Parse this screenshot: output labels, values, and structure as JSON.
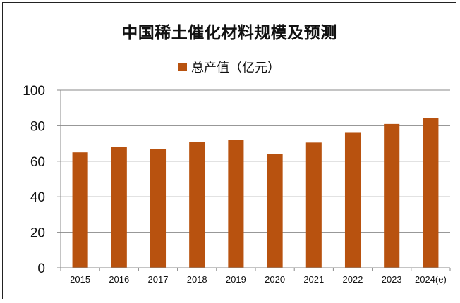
{
  "chart_data": {
    "type": "bar",
    "title": "中国稀土催化材料规模及预测",
    "categories": [
      "2015",
      "2016",
      "2017",
      "2018",
      "2019",
      "2020",
      "2021",
      "2022",
      "2023",
      "2024(e)"
    ],
    "series": [
      {
        "name": "总产值（亿元）",
        "values": [
          65,
          68,
          67,
          71,
          72,
          64,
          70.5,
          76,
          81,
          84.5
        ],
        "color": "#B8520F"
      }
    ],
    "xlabel": "",
    "ylabel": "",
    "ylim": [
      0,
      100
    ],
    "yticks": [
      0,
      20,
      40,
      60,
      80,
      100
    ],
    "grid": true,
    "legend_position": "top"
  }
}
